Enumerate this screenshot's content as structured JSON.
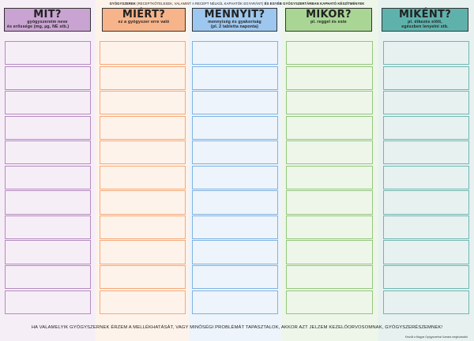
{
  "top_note": {
    "strong1": "GYÓGYSZEREK",
    "normal": " (RECEPTKÖTELESEK, VALAMINT A RECEPT NÉLKÜL KAPHATÓK EGYARÁNT) ",
    "strong2": "ÉS EGYÉB GYÓGYSZERTÁRBAN KAPHATÓ KÉSZÍTMÉNYEK"
  },
  "columns": [
    {
      "title": "MIT?",
      "sub1": "gyógyszereim neve",
      "sub2": "és erőssége (mg, µg, NE stb.)",
      "header_color": "#c9a3d1",
      "bg_color": "#f6eef7",
      "cell_border": "#b58ac0"
    },
    {
      "title": "MIÉRT?",
      "sub1": "ez a gyógyszer erre való",
      "sub2": "",
      "header_color": "#f7b48a",
      "bg_color": "#fef3ea",
      "cell_border": "#f4a97a"
    },
    {
      "title": "MENNYIT?",
      "sub1": "mennyiség és gyakoriság",
      "sub2": "(pl. 2 tabletta naponta)",
      "header_color": "#9dc7ee",
      "bg_color": "#edf4fb",
      "cell_border": "#7fb2e3"
    },
    {
      "title": "MIKOR?",
      "sub1": "pl. reggel és este",
      "sub2": "",
      "header_color": "#a9d695",
      "bg_color": "#eef6ea",
      "cell_border": "#93c77d"
    },
    {
      "title": "MIKÉNT?",
      "sub1": "pl. étkezés előtt,",
      "sub2": "egészben lenyelni stb.",
      "header_color": "#5fb2ac",
      "bg_color": "#e6f1f0",
      "cell_border": "#72b7b1"
    }
  ],
  "rows_per_column": 11,
  "footer": "HA VALAMELYIK GYÓGYSZERNEK ÉRZEM A MELLÉKHATÁSÁT, VAGY MINŐSÉGI PROBLÉMÁT TAPASZTALOK, AKKOR AZT JELZEM KEZELŐORVOSOMNAK, GYÓGYSZERÉSZEMNEK!",
  "credit": "Készült a Magyar Gyógyszerészi Kamara megbízásából"
}
